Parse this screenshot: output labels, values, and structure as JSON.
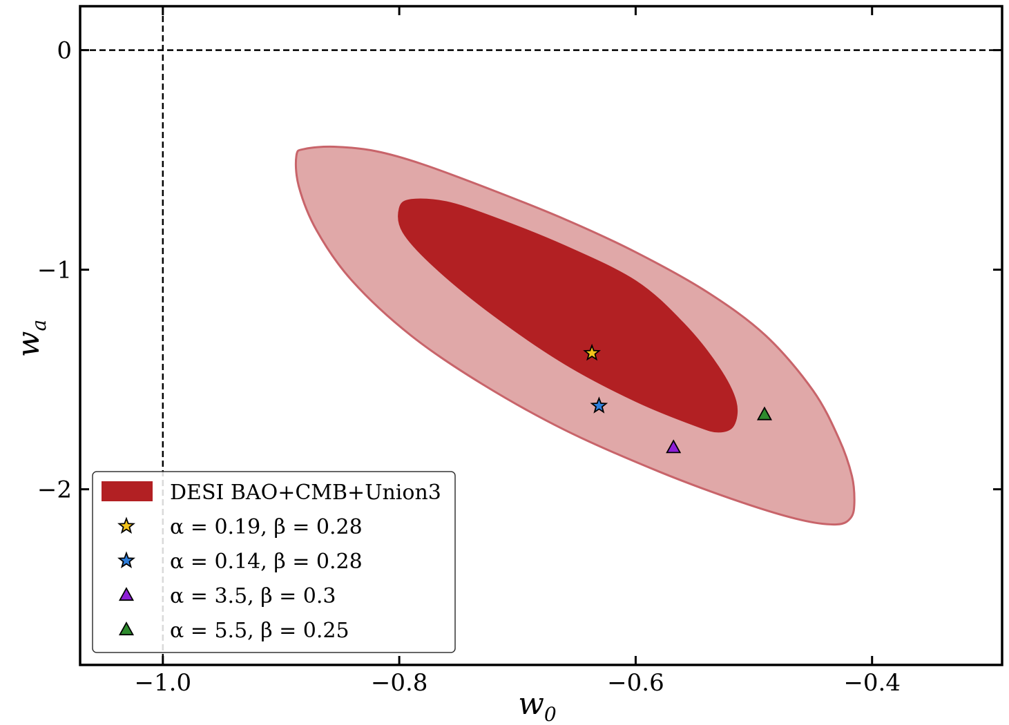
{
  "chart_data": {
    "type": "scatter",
    "title": "",
    "xlabel": {
      "main": "w",
      "sub": "0"
    },
    "ylabel": {
      "main": "w",
      "sub": "a"
    },
    "xlim": [
      -1.07,
      -0.29
    ],
    "ylim": [
      -2.8,
      0.2
    ],
    "xticks": [
      {
        "value": -1.0,
        "label": "−1.0"
      },
      {
        "value": -0.8,
        "label": "−0.8"
      },
      {
        "value": -0.6,
        "label": "−0.6"
      },
      {
        "value": -0.4,
        "label": "−0.4"
      }
    ],
    "yticks": [
      {
        "value": 0,
        "label": "0"
      },
      {
        "value": -1,
        "label": "−1"
      },
      {
        "value": -2,
        "label": "−2"
      }
    ],
    "reference_lines": {
      "vertical_x": -1.0,
      "horizontal_y": 0
    },
    "contours": {
      "name": "DESI BAO+CMB+Union3",
      "levels": [
        {
          "name": "outer",
          "color": "#e0a8a8",
          "edge": "#c8646a",
          "points": [
            [
              -0.887,
              -0.48
            ],
            [
              -0.88,
              -0.45
            ],
            [
              -0.855,
              -0.44
            ],
            [
              -0.82,
              -0.46
            ],
            [
              -0.78,
              -0.52
            ],
            [
              -0.72,
              -0.64
            ],
            [
              -0.66,
              -0.77
            ],
            [
              -0.6,
              -0.92
            ],
            [
              -0.54,
              -1.1
            ],
            [
              -0.49,
              -1.3
            ],
            [
              -0.45,
              -1.55
            ],
            [
              -0.428,
              -1.77
            ],
            [
              -0.417,
              -1.94
            ],
            [
              -0.415,
              -2.06
            ],
            [
              -0.418,
              -2.13
            ],
            [
              -0.43,
              -2.16
            ],
            [
              -0.46,
              -2.14
            ],
            [
              -0.51,
              -2.06
            ],
            [
              -0.58,
              -1.92
            ],
            [
              -0.66,
              -1.73
            ],
            [
              -0.73,
              -1.52
            ],
            [
              -0.79,
              -1.3
            ],
            [
              -0.84,
              -1.05
            ],
            [
              -0.87,
              -0.82
            ],
            [
              -0.885,
              -0.62
            ]
          ]
        },
        {
          "name": "inner",
          "color": "#b22023",
          "edge": "#b22023",
          "points": [
            [
              -0.8,
              -0.72
            ],
            [
              -0.79,
              -0.68
            ],
            [
              -0.76,
              -0.69
            ],
            [
              -0.72,
              -0.76
            ],
            [
              -0.66,
              -0.89
            ],
            [
              -0.6,
              -1.05
            ],
            [
              -0.56,
              -1.24
            ],
            [
              -0.53,
              -1.44
            ],
            [
              -0.515,
              -1.6
            ],
            [
              -0.517,
              -1.71
            ],
            [
              -0.53,
              -1.74
            ],
            [
              -0.55,
              -1.71
            ],
            [
              -0.6,
              -1.6
            ],
            [
              -0.66,
              -1.43
            ],
            [
              -0.72,
              -1.21
            ],
            [
              -0.77,
              -0.99
            ],
            [
              -0.797,
              -0.83
            ]
          ]
        }
      ]
    },
    "series": [
      {
        "name": "α = 0.19, β = 0.28",
        "marker": "star",
        "color": "#f2c31b",
        "points": [
          [
            -0.637,
            -1.38
          ]
        ]
      },
      {
        "name": "α = 0.14, β = 0.28",
        "marker": "star",
        "color": "#2f7fdc",
        "points": [
          [
            -0.631,
            -1.62
          ]
        ]
      },
      {
        "name": "α = 3.5, β = 0.3",
        "marker": "triangle",
        "color": "#8d1fd6",
        "points": [
          [
            -0.568,
            -1.81
          ]
        ]
      },
      {
        "name": "α = 5.5, β = 0.25",
        "marker": "triangle",
        "color": "#2e8b2e",
        "points": [
          [
            -0.491,
            -1.66
          ]
        ]
      }
    ],
    "legend": {
      "position": "bottom-left",
      "entries": [
        {
          "label": "DESI BAO+CMB+Union3",
          "kind": "patch",
          "color": "#b22023"
        },
        {
          "label": "α = 0.19, β = 0.28",
          "kind": "star",
          "color": "#f2c31b"
        },
        {
          "label": "α = 0.14, β = 0.28",
          "kind": "star",
          "color": "#2f7fdc"
        },
        {
          "label": "α = 3.5, β = 0.3",
          "kind": "triangle",
          "color": "#8d1fd6"
        },
        {
          "label": "α = 5.5, β = 0.25",
          "kind": "triangle",
          "color": "#2e8b2e"
        }
      ]
    }
  }
}
